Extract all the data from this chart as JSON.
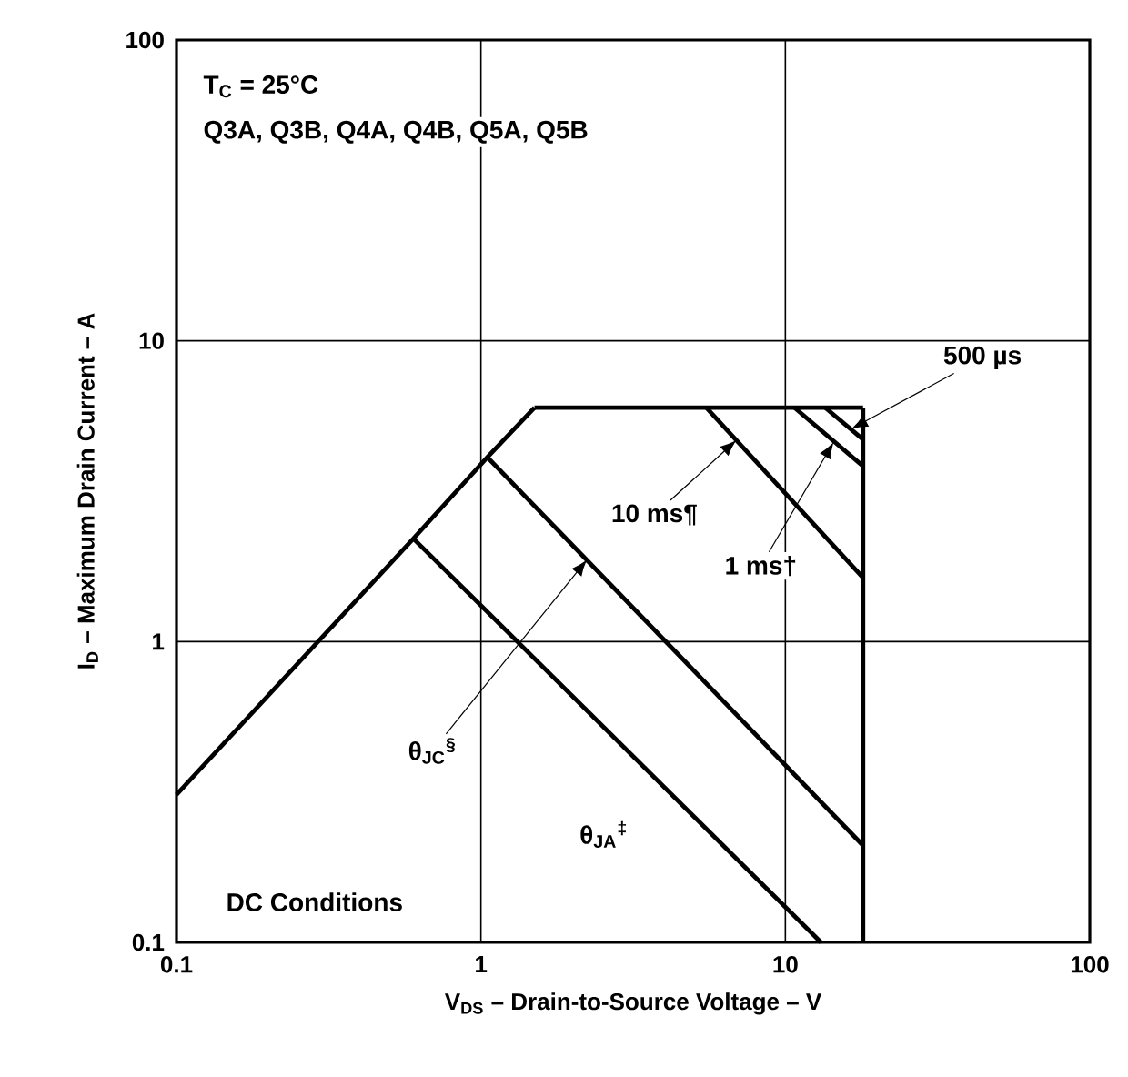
{
  "chart_data": {
    "type": "line",
    "xlabel": "V$_{DS}$ – Drain-to-Source Voltage – V",
    "ylabel": "I$_{D}$ – Maximum Drain Current – A",
    "log": "xy",
    "grid": true,
    "xlim": [
      0.1,
      100
    ],
    "ylim": [
      0.1,
      100
    ],
    "xticks": [
      0.1,
      1,
      10,
      100
    ],
    "yticks": [
      0.1,
      1,
      10,
      100
    ],
    "series": [
      {
        "color": "#000000",
        "x": [
          0.1,
          0.6,
          1.05,
          1.5
        ],
        "values": [
          0.31,
          2.2,
          4.1,
          6
        ]
      },
      {
        "color": "#000000",
        "x": [
          1.5,
          18
        ],
        "values": [
          6,
          6
        ]
      },
      {
        "color": "#000000",
        "x": [
          18,
          18
        ],
        "values": [
          6,
          0.1
        ]
      },
      {
        "color": "#000000",
        "x": [
          5.5,
          18
        ],
        "values": [
          6,
          1.63
        ]
      },
      {
        "color": "#000000",
        "x": [
          10.7,
          18
        ],
        "values": [
          6,
          3.83
        ]
      },
      {
        "color": "#000000",
        "x": [
          13.5,
          18
        ],
        "values": [
          6,
          4.7
        ]
      },
      {
        "color": "#000000",
        "x": [
          1.05,
          18
        ],
        "values": [
          4.1,
          0.21
        ]
      },
      {
        "color": "#000000",
        "x": [
          0.6,
          13.1
        ],
        "values": [
          2.2,
          0.1
        ]
      }
    ],
    "annotations": [
      "T$_{C}$ = 25°C",
      "Q3A, Q3B, Q4A, Q4B, Q5A, Q5B",
      "DC Conditions",
      {
        "text": "500 µs",
        "x": 16.5,
        "y": 5.1
      },
      {
        "text": "10 ms¶",
        "x": 6.9,
        "y": 4.67
      },
      {
        "text": "1 ms†",
        "x": 14.4,
        "y": 4.6
      },
      {
        "text": "θ$_{JC}$$^{§}$",
        "x": 2.23,
        "y": 1.87
      },
      {
        "text": "θ$_{JA}$$^{‡}$",
        "x": 3.2,
        "y": 0.41
      }
    ]
  }
}
